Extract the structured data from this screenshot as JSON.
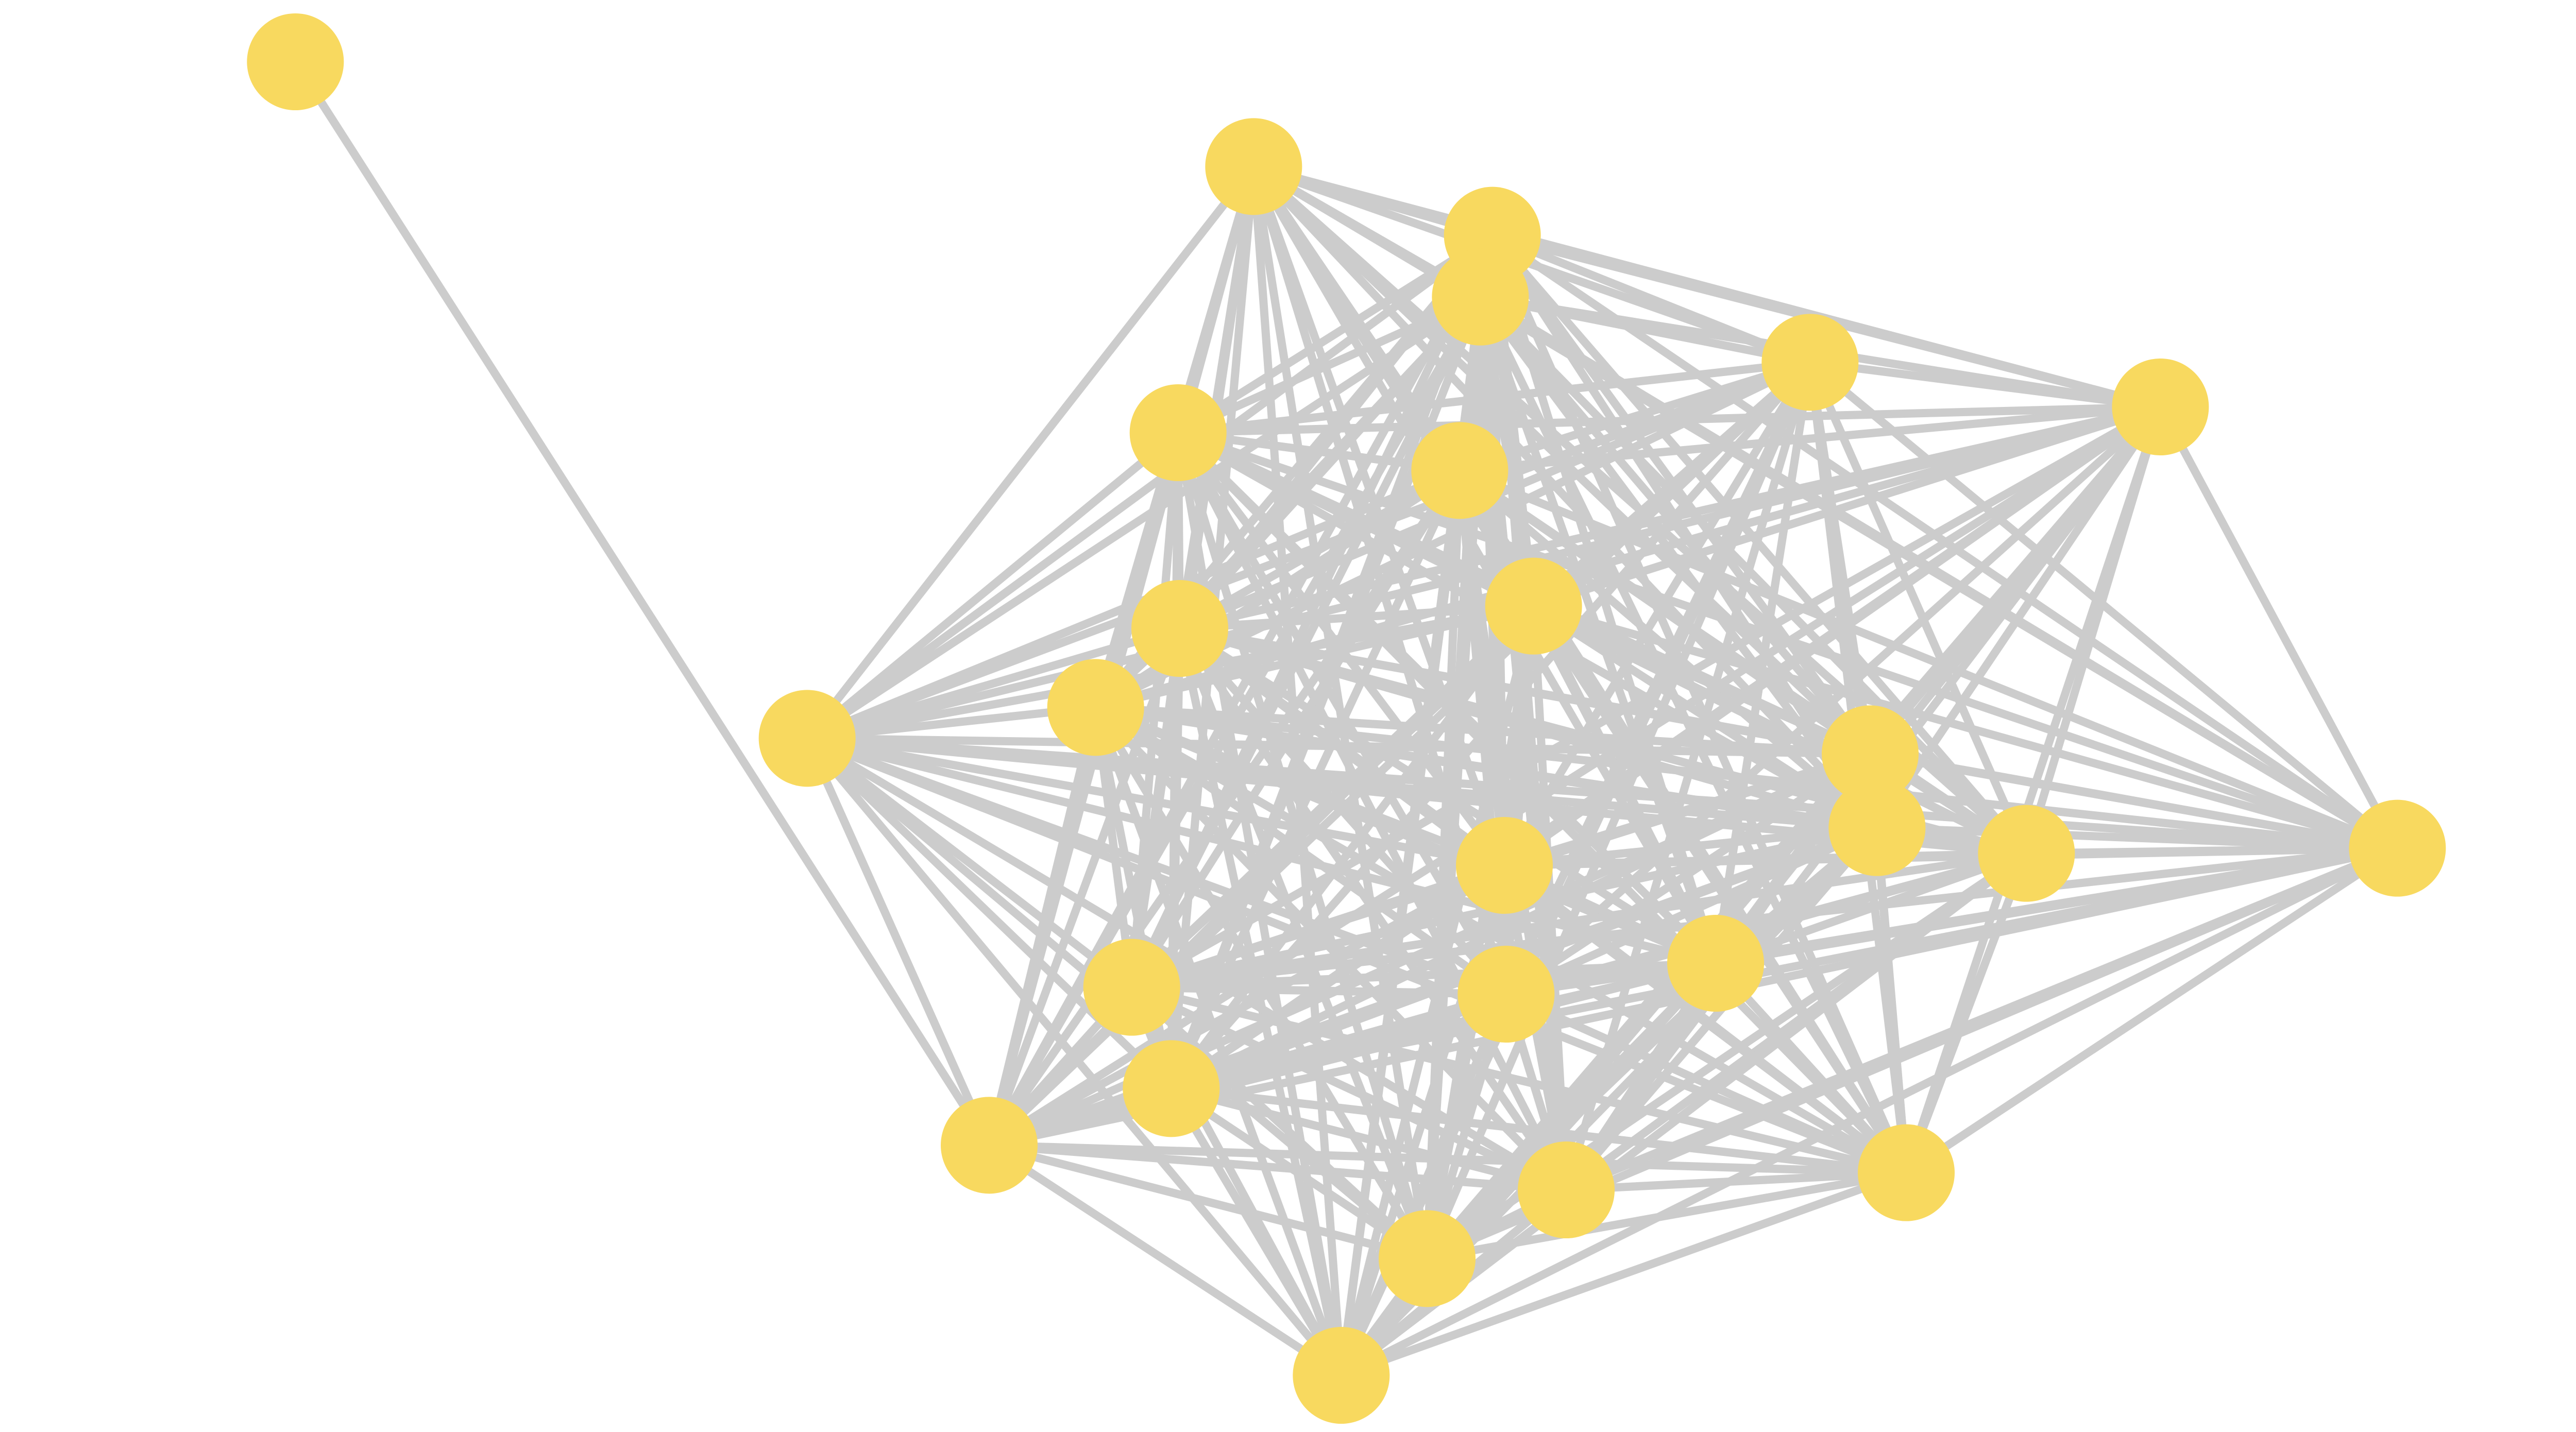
{
  "diagram": {
    "type": "network-graph",
    "colors": {
      "node_fill": "#f8d95f",
      "edge": "#cccccc",
      "background": "#ffffff"
    },
    "nodes": [
      "n0",
      "n1",
      "n2",
      "n3",
      "n4",
      "n5",
      "n6",
      "n7",
      "n8",
      "n9",
      "n10",
      "n11",
      "n12",
      "n13",
      "n14",
      "n15",
      "n16",
      "n17",
      "n18",
      "n19",
      "n20",
      "n21",
      "n22",
      "n23",
      "n24",
      "n25"
    ],
    "edges": [
      [
        "n0",
        "n21"
      ]
    ],
    "densely_connected_group": [
      "n1",
      "n2",
      "n3",
      "n4",
      "n5",
      "n6",
      "n7",
      "n8",
      "n9",
      "n10",
      "n11",
      "n12",
      "n13",
      "n14",
      "n15",
      "n16",
      "n17",
      "n18",
      "n19",
      "n20",
      "n21",
      "n22",
      "n23",
      "n24",
      "n25"
    ]
  }
}
